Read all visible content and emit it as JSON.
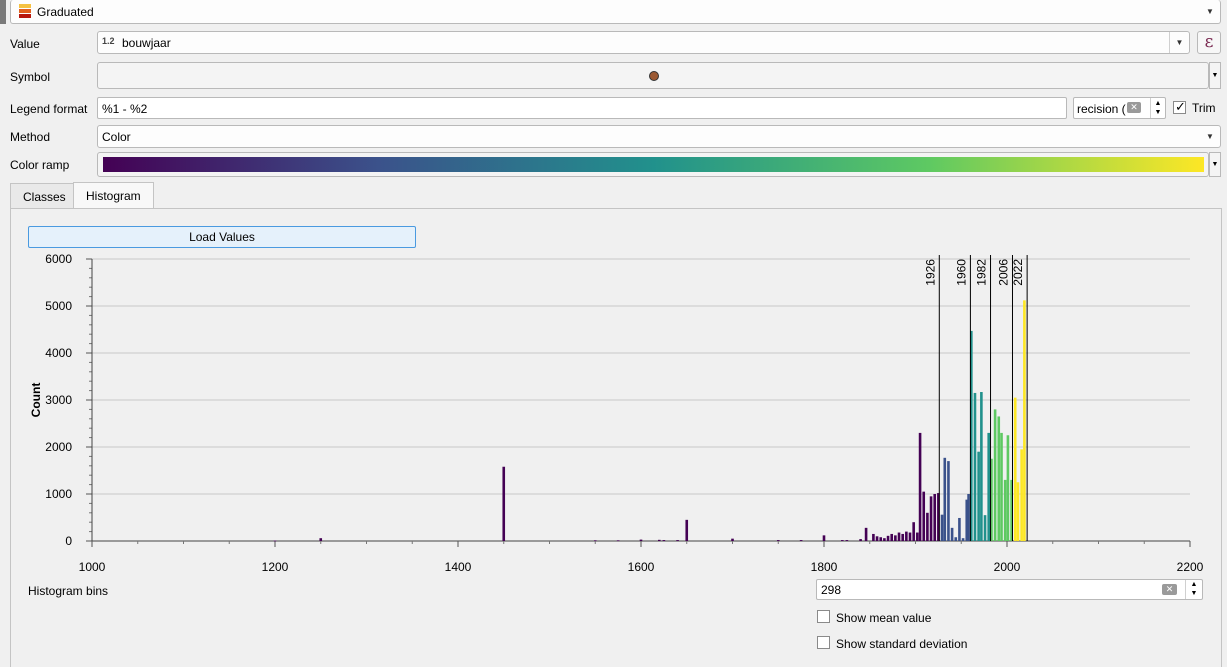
{
  "renderer": {
    "type_label": "Graduated"
  },
  "value_row": {
    "label": "Value",
    "type_badge": "1.2",
    "field": "bouwjaar"
  },
  "symbol_row": {
    "label": "Symbol",
    "symbol_color": "#9c5a34"
  },
  "legend_row": {
    "label": "Legend format",
    "format": "%1 - %2",
    "precision_text": "recision (",
    "trim_label": "Trim",
    "trim_checked": true
  },
  "method_row": {
    "label": "Method",
    "value": "Color"
  },
  "color_ramp_row": {
    "label": "Color ramp",
    "ramp_stops": [
      "#440154",
      "#3b528b",
      "#21918c",
      "#5ec962",
      "#fde725"
    ]
  },
  "tabs": [
    {
      "label": "Classes",
      "active": false
    },
    {
      "label": "Histogram",
      "active": true
    }
  ],
  "load_values_button": "Load Values",
  "histogram_bins": {
    "label": "Histogram bins",
    "value": "298"
  },
  "options": {
    "show_mean": {
      "label": "Show mean value",
      "checked": false
    },
    "show_stddev": {
      "label": "Show standard deviation",
      "checked": false
    }
  },
  "chart_data": {
    "type": "bar",
    "ylabel": "Count",
    "xlim": [
      1000,
      2200
    ],
    "ylim": [
      0,
      6000
    ],
    "x_ticks": [
      1000,
      1200,
      1400,
      1600,
      1800,
      2000,
      2200
    ],
    "y_ticks": [
      0,
      1000,
      2000,
      3000,
      4000,
      5000,
      6000
    ],
    "breaks": [
      1926,
      1960,
      1982,
      2006,
      2022
    ],
    "class_colors": [
      "#440154",
      "#3b528b",
      "#21918c",
      "#5ec962",
      "#fde725"
    ],
    "bins": [
      {
        "x": 1200,
        "count": 10
      },
      {
        "x": 1250,
        "count": 60
      },
      {
        "x": 1450,
        "count": 1580
      },
      {
        "x": 1550,
        "count": 15
      },
      {
        "x": 1575,
        "count": 15
      },
      {
        "x": 1600,
        "count": 30
      },
      {
        "x": 1620,
        "count": 25
      },
      {
        "x": 1625,
        "count": 20
      },
      {
        "x": 1640,
        "count": 20
      },
      {
        "x": 1650,
        "count": 450
      },
      {
        "x": 1700,
        "count": 50
      },
      {
        "x": 1750,
        "count": 20
      },
      {
        "x": 1775,
        "count": 20
      },
      {
        "x": 1800,
        "count": 120
      },
      {
        "x": 1820,
        "count": 20
      },
      {
        "x": 1825,
        "count": 20
      },
      {
        "x": 1840,
        "count": 40
      },
      {
        "x": 1846,
        "count": 280
      },
      {
        "x": 1854,
        "count": 150
      },
      {
        "x": 1858,
        "count": 100
      },
      {
        "x": 1862,
        "count": 80
      },
      {
        "x": 1866,
        "count": 60
      },
      {
        "x": 1870,
        "count": 110
      },
      {
        "x": 1874,
        "count": 150
      },
      {
        "x": 1878,
        "count": 120
      },
      {
        "x": 1882,
        "count": 180
      },
      {
        "x": 1886,
        "count": 150
      },
      {
        "x": 1890,
        "count": 200
      },
      {
        "x": 1894,
        "count": 180
      },
      {
        "x": 1898,
        "count": 400
      },
      {
        "x": 1902,
        "count": 180
      },
      {
        "x": 1905,
        "count": 2300
      },
      {
        "x": 1909,
        "count": 1050
      },
      {
        "x": 1913,
        "count": 600
      },
      {
        "x": 1917,
        "count": 950
      },
      {
        "x": 1921,
        "count": 1000
      },
      {
        "x": 1925,
        "count": 1020
      },
      {
        "x": 1929,
        "count": 560
      },
      {
        "x": 1932,
        "count": 1770
      },
      {
        "x": 1936,
        "count": 1700
      },
      {
        "x": 1940,
        "count": 280
      },
      {
        "x": 1944,
        "count": 80
      },
      {
        "x": 1948,
        "count": 490
      },
      {
        "x": 1952,
        "count": 60
      },
      {
        "x": 1956,
        "count": 880
      },
      {
        "x": 1958,
        "count": 1000
      },
      {
        "x": 1961,
        "count": 4470
      },
      {
        "x": 1965,
        "count": 3150
      },
      {
        "x": 1969,
        "count": 1900
      },
      {
        "x": 1972,
        "count": 3170
      },
      {
        "x": 1976,
        "count": 550
      },
      {
        "x": 1980,
        "count": 2300
      },
      {
        "x": 1983,
        "count": 1750
      },
      {
        "x": 1987,
        "count": 2800
      },
      {
        "x": 1991,
        "count": 2650
      },
      {
        "x": 1994,
        "count": 2300
      },
      {
        "x": 1998,
        "count": 1300
      },
      {
        "x": 2001,
        "count": 2250
      },
      {
        "x": 2005,
        "count": 1300
      },
      {
        "x": 2009,
        "count": 3050
      },
      {
        "x": 2012,
        "count": 1250
      },
      {
        "x": 2016,
        "count": 1950
      },
      {
        "x": 2019,
        "count": 5120
      }
    ]
  }
}
